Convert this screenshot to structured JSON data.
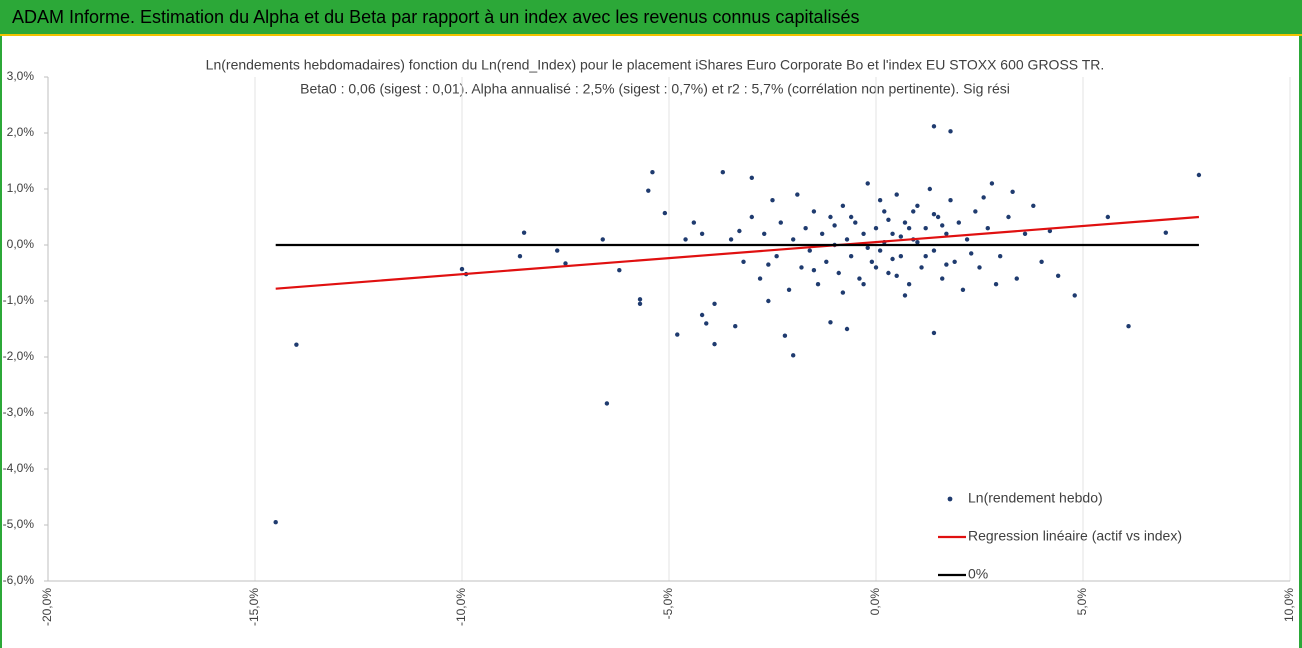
{
  "header": {
    "title": "ADAM Informe. Estimation du Alpha et du Beta par rapport à un index avec les revenus connus capitalisés"
  },
  "chart_data": {
    "type": "scatter",
    "title": "Ln(rendements hebdomadaires) fonction du Ln(rend_Index) pour le placement iShares Euro Corporate Bo et l'index EU STOXX 600 GROSS TR.",
    "subtitle": "Beta0 : 0,06 (sigest : 0,01).  Alpha annualisé : 2,5% (sigest : 0,7%) et r2 : 5,7% (corrélation non pertinente). Sig rési",
    "xlim": [
      -20,
      10
    ],
    "xticks": [
      {
        "value": -20,
        "label": "-20,0%"
      },
      {
        "value": -15,
        "label": "-15,0%"
      },
      {
        "value": -10,
        "label": "-10,0%"
      },
      {
        "value": -5,
        "label": "-5,0%"
      },
      {
        "value": 0,
        "label": "0,0%"
      },
      {
        "value": 5,
        "label": "5,0%"
      },
      {
        "value": 10,
        "label": "10,0%"
      }
    ],
    "ylim": [
      -6,
      3
    ],
    "yticks": [
      {
        "value": 3,
        "label": "3,0%"
      },
      {
        "value": 2,
        "label": "2,0%"
      },
      {
        "value": 1,
        "label": "1,0%"
      },
      {
        "value": 0,
        "label": "0,0%"
      },
      {
        "value": -1,
        "label": "-1,0%"
      },
      {
        "value": -2,
        "label": "-2,0%"
      },
      {
        "value": -3,
        "label": "-3,0%"
      },
      {
        "value": -4,
        "label": "-4,0%"
      },
      {
        "value": -5,
        "label": "-5,0%"
      },
      {
        "value": -6,
        "label": "-6,0%"
      }
    ],
    "grid": true,
    "legend": "lower right",
    "series": [
      {
        "name": "Ln(rendement hebdo)",
        "color": "#1f3b6f",
        "style": "markers",
        "x": [
          -14.5,
          -14,
          -6.5,
          -6.6,
          -5.4,
          -5.5,
          -5.7,
          -5.7,
          -8.5,
          -8.6,
          -10,
          -9.9,
          -7.7,
          -7.5,
          -6.2,
          -5.1,
          -4.8,
          -4.4,
          -4.2,
          -4.1,
          -3.9,
          -3.9,
          -3.7,
          -3.4,
          -3,
          -2.6,
          -2.2,
          -2,
          -1.1,
          -0.7,
          1.4,
          1.8,
          1.4,
          4.8,
          6.1,
          7.8,
          7,
          5.6,
          -3.5,
          -3.2,
          -3,
          -2.8,
          -2.7,
          -2.5,
          -2.4,
          -2.3,
          -2.1,
          -2,
          -1.9,
          -1.8,
          -1.7,
          -1.6,
          -1.5,
          -1.4,
          -1.3,
          -1.2,
          -1.1,
          -1,
          -0.9,
          -0.8,
          -0.7,
          -0.6,
          -0.5,
          -0.4,
          -0.3,
          -0.2,
          -0.1,
          0,
          0.1,
          0.2,
          0.3,
          0.4,
          0.5,
          0.6,
          0.7,
          0.8,
          0.9,
          1,
          1.1,
          1.2,
          1.3,
          1.4,
          1.5,
          1.6,
          1.7,
          1.8,
          1.9,
          2,
          2.1,
          2.2,
          2.4,
          2.5,
          2.7,
          2.8,
          3,
          3.2,
          3.4,
          3.6,
          3.8,
          4,
          4.2,
          4.4,
          0.2,
          0.6,
          -0.2,
          1,
          0.4,
          0.8,
          -0.6,
          1.6,
          0,
          0.3,
          1.2,
          -1,
          2.3,
          0.9,
          -0.3,
          1.7,
          0.5,
          -1.5,
          2.6,
          -2.6,
          0.1,
          1.4,
          -0.8,
          0.7,
          3.3,
          -3.3,
          2.9,
          -4.2,
          -4.6
        ],
        "values": [
          -4.95,
          -1.78,
          -2.83,
          0.1,
          1.3,
          0.97,
          -0.97,
          -1.05,
          0.22,
          -0.2,
          -0.43,
          -0.52,
          -0.1,
          -0.33,
          -0.45,
          0.57,
          -1.6,
          0.4,
          -1.25,
          -1.4,
          -1.77,
          -1.05,
          1.3,
          -1.45,
          1.2,
          -1,
          -1.62,
          -1.97,
          -1.38,
          -1.5,
          2.12,
          2.03,
          -1.57,
          -0.9,
          -1.45,
          1.25,
          0.22,
          0.5,
          0.1,
          -0.3,
          0.5,
          -0.6,
          0.2,
          0.8,
          -0.2,
          0.4,
          -0.8,
          0.1,
          0.9,
          -0.4,
          0.3,
          -0.1,
          0.6,
          -0.7,
          0.2,
          -0.3,
          0.5,
          0,
          -0.5,
          0.7,
          0.1,
          -0.2,
          0.4,
          -0.6,
          0.2,
          1.1,
          -0.3,
          0.3,
          -0.1,
          0.6,
          -0.5,
          0.2,
          0.9,
          -0.2,
          0.4,
          -0.7,
          0.1,
          0.7,
          -0.4,
          0.3,
          1,
          -0.1,
          0.5,
          -0.6,
          0.2,
          0.8,
          -0.3,
          0.4,
          -0.8,
          0.1,
          0.6,
          -0.4,
          0.3,
          1.1,
          -0.2,
          0.5,
          -0.6,
          0.2,
          0.7,
          -0.3,
          0.25,
          -0.55,
          0.05,
          0.15,
          -0.05,
          0.05,
          -0.25,
          0.3,
          0.5,
          0.35,
          -0.4,
          0.45,
          -0.2,
          0.35,
          -0.15,
          0.6,
          -0.7,
          -0.35,
          -0.55,
          -0.45,
          0.85,
          -0.35,
          0.8,
          0.55,
          -0.85,
          -0.9,
          0.95,
          0.25,
          -0.7,
          0.2,
          0.1
        ]
      },
      {
        "name": "Regression linéaire (actif vs index)",
        "color": "#e01010",
        "style": "line",
        "x": [
          -14.5,
          7.8
        ],
        "values": [
          -0.78,
          0.5
        ]
      },
      {
        "name": "0%",
        "color": "#000000",
        "style": "line",
        "x": [
          -14.5,
          7.8
        ],
        "values": [
          0,
          0
        ]
      }
    ]
  }
}
